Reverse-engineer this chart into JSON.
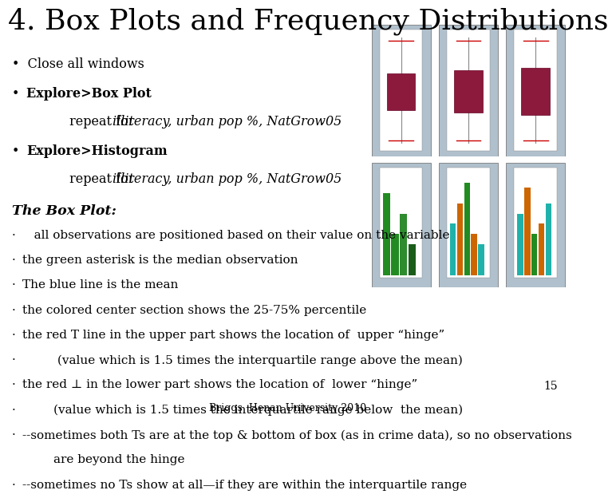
{
  "title": "4. Box Plots and Frequency Distributions",
  "background_color": "#ffffff",
  "title_fontsize": 26,
  "body_fontsize": 11.5,
  "page_number": "15",
  "footer": "Briggs  Henan University 2010"
}
